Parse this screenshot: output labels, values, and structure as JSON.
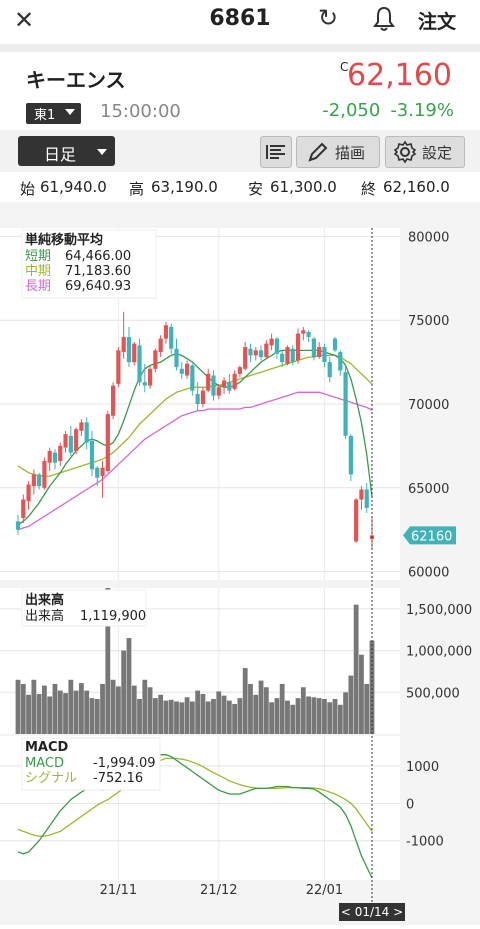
{
  "header": {
    "stock_code": "6861",
    "order_label": "注文"
  },
  "stock": {
    "name": "キーエンス",
    "exchange": "東1",
    "time": "15:00:00",
    "flag": "C",
    "price": "62,160",
    "change": "-2,050",
    "change_pct": "-3.19%",
    "colors": {
      "up": "#e24a4a",
      "down": "#36a54d"
    }
  },
  "controls": {
    "period": "日足",
    "draw_label": "描画",
    "settings_label": "設定"
  },
  "ohlc": [
    {
      "label": "始",
      "value": "61,940.0"
    },
    {
      "label": "高",
      "value": "63,190.0"
    },
    {
      "label": "安",
      "value": "61,300.0"
    },
    {
      "label": "終",
      "value": "62,160.0"
    }
  ],
  "legends": {
    "sma": {
      "title": "単純移動平均",
      "rows": [
        {
          "label": "短期",
          "value": "64,466.00",
          "color": "#3a9a4a"
        },
        {
          "label": "中期",
          "value": "71,183.60",
          "color": "#9aba2e"
        },
        {
          "label": "長期",
          "value": "69,640.93",
          "color": "#d56ad0"
        }
      ]
    },
    "volume": {
      "title": "出来高",
      "label": "出来高",
      "value": "1,119,900"
    },
    "macd": {
      "title": "MACD",
      "rows": [
        {
          "label": "MACD",
          "value": "-1,994.09",
          "color": "#3a9a4a"
        },
        {
          "label": "シグナル",
          "value": "-752.16",
          "color": "#9aba2e"
        }
      ]
    }
  },
  "price_badge": "62160",
  "cursor_date": "< 01/14 >",
  "chart_data": [
    {
      "type": "candlestick",
      "ylim": [
        59500,
        80500
      ],
      "yticks": [
        "80000",
        "75000",
        "70000",
        "65000",
        "60000"
      ],
      "ytick_values": [
        80000,
        75000,
        70000,
        65000,
        60000
      ],
      "xticks": [
        "21/11",
        "21/12",
        "22/01"
      ],
      "xtick_index": [
        19,
        38,
        58
      ],
      "ohlc": [
        [
          63000,
          63400,
          62200,
          62500
        ],
        [
          63200,
          64600,
          62900,
          64300
        ],
        [
          64200,
          65400,
          63700,
          65200
        ],
        [
          65100,
          66100,
          64600,
          65800
        ],
        [
          65800,
          65900,
          64900,
          65100
        ],
        [
          65000,
          66800,
          64900,
          66600
        ],
        [
          66500,
          67400,
          66000,
          67200
        ],
        [
          67100,
          67300,
          66100,
          66500
        ],
        [
          66600,
          67700,
          66300,
          67500
        ],
        [
          67400,
          68400,
          67100,
          68200
        ],
        [
          68100,
          68700,
          66900,
          67100
        ],
        [
          67200,
          68600,
          67000,
          68500
        ],
        [
          68400,
          69100,
          68100,
          68900
        ],
        [
          68900,
          69200,
          67300,
          67700
        ],
        [
          67800,
          68400,
          65700,
          66100
        ],
        [
          66200,
          66300,
          65100,
          65600
        ],
        [
          65700,
          66600,
          64400,
          66200
        ],
        [
          66000,
          69600,
          65900,
          69400
        ],
        [
          69300,
          71300,
          69100,
          71100
        ],
        [
          71200,
          73400,
          71000,
          73200
        ],
        [
          73100,
          75500,
          72700,
          74000
        ],
        [
          74000,
          74600,
          72200,
          72500
        ],
        [
          72500,
          73700,
          72300,
          73600
        ],
        [
          73500,
          73900,
          71100,
          71300
        ],
        [
          71300,
          72400,
          70700,
          71100
        ],
        [
          71100,
          72300,
          70900,
          72100
        ],
        [
          72100,
          73300,
          71900,
          73200
        ],
        [
          73100,
          74100,
          72800,
          73900
        ],
        [
          73900,
          74900,
          73600,
          74700
        ],
        [
          74600,
          74800,
          73000,
          73300
        ],
        [
          73300,
          73900,
          72000,
          72200
        ],
        [
          72100,
          72500,
          71500,
          71800
        ],
        [
          71700,
          72600,
          71500,
          72400
        ],
        [
          72300,
          72400,
          70500,
          70800
        ],
        [
          70600,
          71300,
          69600,
          70000
        ],
        [
          70000,
          71000,
          69800,
          70800
        ],
        [
          70800,
          72100,
          70700,
          71800
        ],
        [
          71700,
          72000,
          70200,
          70500
        ],
        [
          70500,
          71200,
          70300,
          71000
        ],
        [
          71000,
          71600,
          70600,
          71400
        ],
        [
          71300,
          71800,
          70600,
          70800
        ],
        [
          70900,
          72000,
          70800,
          71800
        ],
        [
          71800,
          72300,
          71600,
          72200
        ],
        [
          72100,
          73700,
          72000,
          73400
        ],
        [
          73300,
          73600,
          72500,
          72900
        ],
        [
          72900,
          73400,
          72600,
          73200
        ],
        [
          73200,
          73500,
          72600,
          72800
        ],
        [
          72800,
          73800,
          72700,
          73600
        ],
        [
          73500,
          74200,
          73200,
          73900
        ],
        [
          73900,
          74000,
          72700,
          73000
        ],
        [
          73000,
          73200,
          72200,
          72500
        ],
        [
          72400,
          73500,
          72300,
          73400
        ],
        [
          73300,
          73500,
          72300,
          72500
        ],
        [
          72600,
          74500,
          72400,
          74200
        ],
        [
          74200,
          74600,
          73800,
          74400
        ],
        [
          74300,
          74400,
          73700,
          74000
        ],
        [
          73900,
          74000,
          72600,
          72800
        ],
        [
          72800,
          73700,
          72700,
          73400
        ],
        [
          73400,
          73600,
          72200,
          72500
        ],
        [
          72500,
          72800,
          71300,
          71600
        ],
        [
          73900,
          74000,
          73100,
          73200
        ],
        [
          73100,
          73200,
          71700,
          72000
        ],
        [
          71900,
          72400,
          67900,
          68100
        ],
        [
          68100,
          68200,
          65400,
          65800
        ],
        [
          61800,
          64400,
          61700,
          64300
        ],
        [
          64300,
          65100,
          63700,
          64900
        ],
        [
          64900,
          65300,
          63500,
          63800
        ],
        [
          61940,
          63190,
          61300,
          62160
        ]
      ],
      "sma_short": [
        62800,
        63000,
        63300,
        63700,
        64100,
        64600,
        65100,
        65500,
        65900,
        66400,
        66800,
        67200,
        67500,
        67800,
        67900,
        67800,
        67600,
        67500,
        67700,
        68200,
        69000,
        69900,
        70800,
        71600,
        72100,
        72300,
        72400,
        72500,
        72700,
        72900,
        73000,
        72900,
        72700,
        72500,
        72200,
        71900,
        71600,
        71300,
        71100,
        71000,
        71000,
        71100,
        71300,
        71600,
        71900,
        72200,
        72500,
        72700,
        72900,
        73100,
        73200,
        73200,
        73200,
        73200,
        73200,
        73200,
        73200,
        73200,
        73100,
        73000,
        72900,
        72700,
        72300,
        71500,
        70300,
        68900,
        67000,
        64466
      ],
      "sma_mid": [
        66300,
        66100,
        65900,
        65800,
        65700,
        65700,
        65700,
        65800,
        65900,
        66000,
        66100,
        66200,
        66300,
        66400,
        66500,
        66600,
        66700,
        66900,
        67100,
        67400,
        67700,
        68000,
        68400,
        68800,
        69100,
        69400,
        69700,
        70000,
        70300,
        70500,
        70700,
        70800,
        70900,
        71000,
        71000,
        71000,
        71000,
        71100,
        71100,
        71200,
        71300,
        71400,
        71500,
        71600,
        71700,
        71800,
        71900,
        72000,
        72100,
        72200,
        72300,
        72400,
        72500,
        72600,
        72700,
        72800,
        72800,
        72900,
        72900,
        72900,
        72900,
        72800,
        72600,
        72400,
        72100,
        71800,
        71500,
        71183.6
      ],
      "sma_long": [
        62500,
        62600,
        62700,
        62900,
        63100,
        63300,
        63500,
        63700,
        63900,
        64100,
        64300,
        64500,
        64700,
        64900,
        65100,
        65300,
        65500,
        65800,
        66100,
        66400,
        66700,
        67000,
        67300,
        67600,
        67900,
        68100,
        68300,
        68500,
        68700,
        68900,
        69100,
        69300,
        69400,
        69500,
        69600,
        69600,
        69700,
        69700,
        69700,
        69700,
        69700,
        69700,
        69700,
        69800,
        69800,
        69900,
        70000,
        70100,
        70200,
        70300,
        70400,
        70500,
        70600,
        70700,
        70700,
        70700,
        70700,
        70700,
        70600,
        70500,
        70400,
        70300,
        70200,
        70100,
        70000,
        69900,
        69800,
        69640.93
      ]
    },
    {
      "type": "bar",
      "ylim": [
        0,
        1750000
      ],
      "yticks": [
        "1,500,000",
        "1,000,000",
        "500,000"
      ],
      "ytick_values": [
        1500000,
        1000000,
        500000
      ],
      "values": [
        650000,
        600000,
        470000,
        650000,
        480000,
        580000,
        450000,
        600000,
        520000,
        490000,
        650000,
        520000,
        610000,
        520000,
        430000,
        420000,
        600000,
        1850000,
        650000,
        570000,
        1000000,
        1150000,
        580000,
        420000,
        650000,
        560000,
        430000,
        470000,
        400000,
        410000,
        390000,
        380000,
        440000,
        390000,
        520000,
        480000,
        390000,
        420000,
        510000,
        460000,
        400000,
        360000,
        430000,
        790000,
        600000,
        470000,
        640000,
        560000,
        380000,
        430000,
        600000,
        400000,
        350000,
        430000,
        560000,
        450000,
        440000,
        430000,
        420000,
        380000,
        420000,
        350000,
        500000,
        700000,
        1550000,
        950000,
        600000,
        1119900
      ]
    },
    {
      "type": "line",
      "ylim": [
        -2050,
        1800
      ],
      "yticks": [
        "1000",
        "0",
        "-1000"
      ],
      "ytick_values": [
        1000,
        0,
        -1000
      ],
      "series": [
        {
          "name": "MACD",
          "values": [
            -1300,
            -1350,
            -1300,
            -1150,
            -1000,
            -800,
            -600,
            -400,
            -200,
            -50,
            100,
            200,
            300,
            380,
            400,
            380,
            350,
            400,
            600,
            800,
            1000,
            1200,
            1300,
            1350,
            1400,
            1400,
            1350,
            1300,
            1300,
            1250,
            1150,
            1050,
            950,
            850,
            750,
            650,
            550,
            450,
            350,
            300,
            250,
            250,
            250,
            300,
            350,
            400,
            400,
            400,
            420,
            450,
            450,
            450,
            420,
            420,
            400,
            400,
            380,
            300,
            200,
            100,
            0,
            -100,
            -300,
            -600,
            -1000,
            -1400,
            -1700,
            -1994.09
          ]
        },
        {
          "name": "シグナル",
          "values": [
            -700,
            -750,
            -800,
            -850,
            -880,
            -880,
            -850,
            -800,
            -750,
            -650,
            -550,
            -450,
            -350,
            -250,
            -150,
            -50,
            30,
            100,
            200,
            300,
            400,
            550,
            700,
            850,
            950,
            1050,
            1100,
            1150,
            1200,
            1200,
            1200,
            1180,
            1150,
            1100,
            1050,
            980,
            900,
            820,
            750,
            680,
            600,
            550,
            500,
            460,
            430,
            410,
            400,
            400,
            400,
            400,
            410,
            420,
            420,
            420,
            420,
            420,
            410,
            390,
            350,
            300,
            250,
            180,
            100,
            0,
            -150,
            -350,
            -550,
            -752.16
          ]
        }
      ]
    }
  ]
}
